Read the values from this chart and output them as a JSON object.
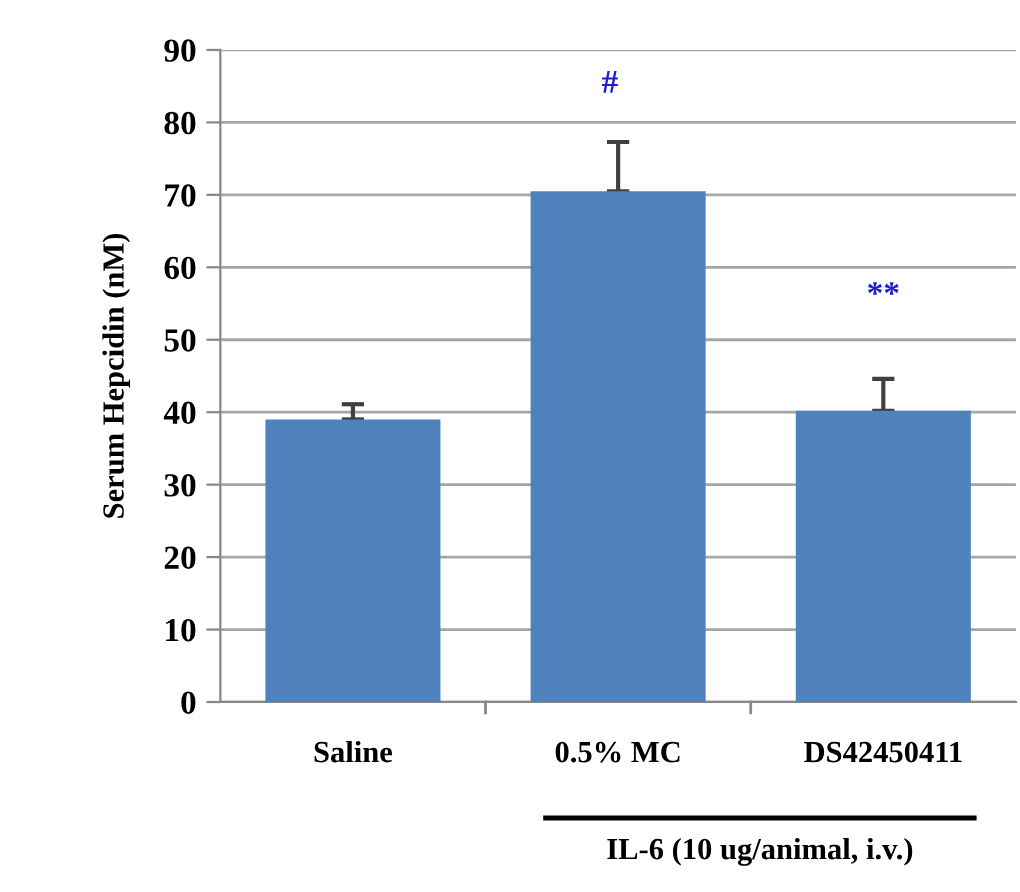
{
  "chart_data": {
    "type": "bar",
    "ylabel": "Serum Hepcidin (nM)",
    "categories": [
      "Saline",
      "0.5% MC",
      "DS42450411"
    ],
    "values": [
      39.0,
      70.5,
      40.2
    ],
    "errors": [
      [
        39.0,
        41.1
      ],
      [
        70.5,
        77.3
      ],
      [
        40.2,
        44.6
      ]
    ],
    "color": "#4f81bd",
    "ylim": [
      0,
      90
    ],
    "yticks": [
      0,
      10,
      20,
      30,
      40,
      50,
      60,
      70,
      80,
      90
    ],
    "grid": "y",
    "annotations": [
      "#",
      "**",
      "IL-6 (10 ug/animal, i.v.)"
    ]
  }
}
